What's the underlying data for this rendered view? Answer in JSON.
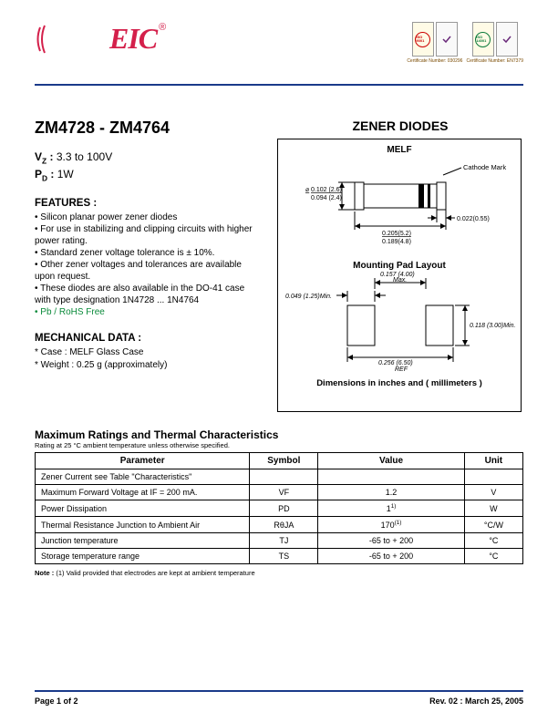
{
  "header": {
    "logo_text": "EIC",
    "reg_mark": "®",
    "certs": [
      {
        "iso": "ISO 9001",
        "num": "Certificate Number: 030296"
      },
      {
        "iso": "ISO 14001",
        "num": "Certificate Number: EN7379"
      }
    ]
  },
  "left": {
    "part_range": "ZM4728 - ZM4764",
    "vz_label": "V",
    "vz_sub": "Z",
    "vz_colon": " :",
    "vz_val": " 3.3 to 100V",
    "pd_label": "P",
    "pd_sub": "D",
    "pd_colon": " :",
    "pd_val": " 1W",
    "features_h": "FEATURES :",
    "features": [
      "Silicon planar power zener diodes",
      "For use in stabilizing and clipping circuits with higher power rating.",
      "Standard zener voltage tolerance is ± 10%.",
      "Other zener voltages and tolerances are available upon request.",
      "These diodes are also available in the DO-41 case with type designation 1N4728 ... 1N4764"
    ],
    "feature_green": "Pb / RoHS Free",
    "mech_h": "MECHANICAL  DATA :",
    "mech": [
      "Case : MELF Glass Case",
      "Weight : 0.25 g (approximately)"
    ]
  },
  "right": {
    "title": "ZENER DIODES",
    "pkg_label": "MELF",
    "cathode": "Cathode Mark",
    "dims_top": [
      "0.102 (2.6)",
      "0.094 (2.4)",
      "0.022(0.55)",
      "0.205(5.2)",
      "0.189(4.8)"
    ],
    "mount_h": "Mounting Pad Layout",
    "dims_mount": [
      "0.049 (1.25)Min.",
      "0.157 (4.00) Max.",
      "0.118 (3.00)Min.",
      "0.256 (6.50) REF"
    ],
    "dim_caption": "Dimensions in inches and ( millimeters )"
  },
  "ratings": {
    "heading": "Maximum Ratings and Thermal Characteristics",
    "sub": "Rating at  25 °C ambient temperature unless otherwise specified.",
    "columns": [
      "Parameter",
      "Symbol",
      "Value",
      "Unit"
    ],
    "rows": [
      {
        "p": "Zener Current see Table \"Characteristics\"",
        "s": "",
        "v": "",
        "u": ""
      },
      {
        "p": "Maximum Forward Voltage at IF = 200 mA.",
        "s": "VF",
        "v": "1.2",
        "u": "V"
      },
      {
        "p": "Power Dissipation",
        "s": "PD",
        "v": "1",
        "sup": "1)",
        "u": "W"
      },
      {
        "p": "Thermal Resistance Junction to Ambient Air",
        "s": "RθJA",
        "v": "170",
        "sup": "(1)",
        "u": "°C/W"
      },
      {
        "p": "Junction temperature",
        "s": "TJ",
        "v": "-65 to + 200",
        "u": "°C"
      },
      {
        "p": "Storage temperature range",
        "s": "TS",
        "v": "-65 to + 200",
        "u": "°C"
      }
    ],
    "note_label": "Note :",
    "note": " (1) Valid provided that electrodes are kept at ambient temperature"
  },
  "footer": {
    "page": "Page 1 of 2",
    "rev": "Rev. 02 : March 25, 2005"
  },
  "colors": {
    "rule": "#1a3a8a",
    "logo": "#d4204b",
    "green": "#0a8a3a"
  }
}
